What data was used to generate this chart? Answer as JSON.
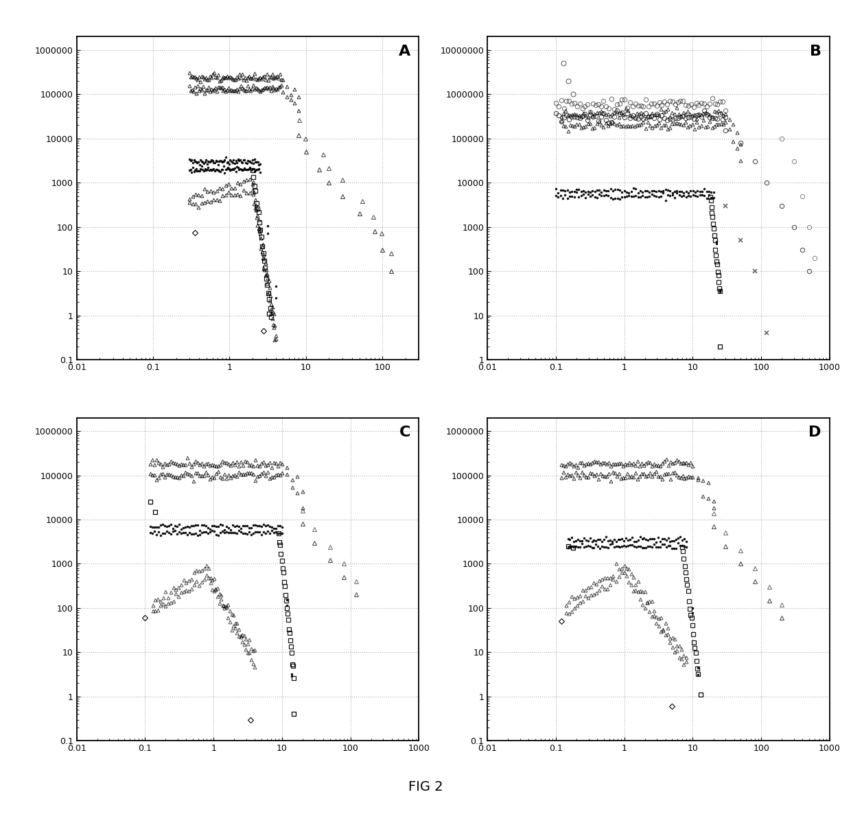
{
  "title": "FIG 2",
  "panels": {
    "A": {
      "xlim": [
        0.01,
        300
      ],
      "ylim": [
        0.1,
        2000000
      ],
      "xtick_vals": [
        0.01,
        0.1,
        1,
        10,
        100
      ],
      "xtick_labels": [
        "0.01",
        "0.1",
        "1",
        "10",
        "100"
      ],
      "ytick_vals": [
        0.1,
        1,
        10,
        100,
        1000,
        10000,
        100000,
        1000000
      ],
      "ytick_labels": [
        "0.1",
        "1",
        "10",
        "100",
        "1000",
        "10000",
        "100000",
        "1000000"
      ]
    },
    "B": {
      "xlim": [
        0.01,
        1000
      ],
      "ylim": [
        1,
        20000000
      ],
      "xtick_vals": [
        0.01,
        0.1,
        1,
        10,
        100,
        1000
      ],
      "xtick_labels": [
        "0.01",
        "0.1",
        "1",
        "10",
        "100",
        "1000"
      ],
      "ytick_vals": [
        1,
        10,
        100,
        1000,
        10000,
        100000,
        1000000,
        10000000
      ],
      "ytick_labels": [
        "1",
        "10",
        "100",
        "1000",
        "10000",
        "100000",
        "1000000",
        "10000000"
      ]
    },
    "C": {
      "xlim": [
        0.01,
        1000
      ],
      "ylim": [
        0.1,
        2000000
      ],
      "xtick_vals": [
        0.01,
        0.1,
        1,
        10,
        100,
        1000
      ],
      "xtick_labels": [
        "0.01",
        "0.1",
        "1",
        "10",
        "100",
        "1000"
      ],
      "ytick_vals": [
        0.1,
        1,
        10,
        100,
        1000,
        10000,
        100000,
        1000000
      ],
      "ytick_labels": [
        "0.1",
        "1",
        "10",
        "100",
        "1000",
        "10000",
        "100000",
        "1000000"
      ]
    },
    "D": {
      "xlim": [
        0.01,
        1000
      ],
      "ylim": [
        0.1,
        2000000
      ],
      "xtick_vals": [
        0.01,
        0.1,
        1,
        10,
        100,
        1000
      ],
      "xtick_labels": [
        "0.01",
        "0.1",
        "1",
        "10",
        "100",
        "1000"
      ],
      "ytick_vals": [
        0.1,
        1,
        10,
        100,
        1000,
        10000,
        100000,
        1000000
      ],
      "ytick_labels": [
        "0.1",
        "1",
        "10",
        "100",
        "1000",
        "10000",
        "100000",
        "1000000"
      ]
    }
  }
}
